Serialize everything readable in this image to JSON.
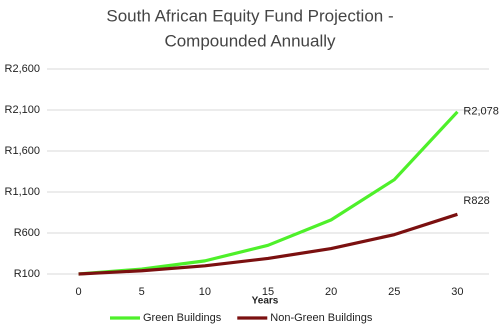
{
  "chart_data": {
    "type": "line",
    "title": [
      "South African Equity Fund Projection -",
      "Compounded Annually"
    ],
    "x_label": "Years",
    "categories": [
      "0",
      "5",
      "10",
      "15",
      "20",
      "25",
      "30"
    ],
    "series": [
      {
        "name": "Green Buildings",
        "color": "#4ef02a",
        "values": [
          100,
          160,
          260,
          450,
          760,
          1250,
          2078
        ],
        "value_labels": [
          null,
          null,
          null,
          null,
          null,
          null,
          "R2,078"
        ]
      },
      {
        "name": "Non-Green Buildings",
        "color": "#7b1010",
        "values": [
          100,
          140,
          200,
          290,
          410,
          580,
          828
        ],
        "value_labels": [
          null,
          null,
          null,
          null,
          null,
          null,
          "R828"
        ]
      }
    ],
    "ylim": [
      100,
      2600
    ],
    "yticks": [
      {
        "value": 100,
        "label": "R100"
      },
      {
        "value": 600,
        "label": "R600"
      },
      {
        "value": 1100,
        "label": "R1,100"
      },
      {
        "value": 1600,
        "label": "R1,600"
      },
      {
        "value": 2100,
        "label": "R2,100"
      },
      {
        "value": 2600,
        "label": "R2,600"
      }
    ],
    "grid": true,
    "legend": "bottom"
  }
}
